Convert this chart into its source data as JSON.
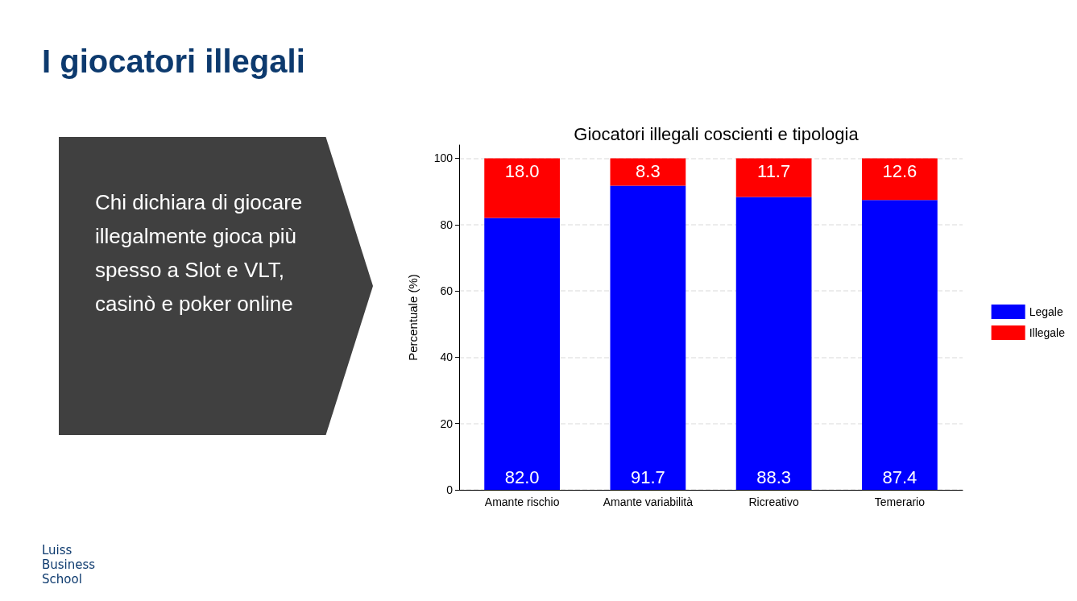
{
  "chart_data": {
    "type": "bar",
    "title": "I giocatori illegali",
    "subtitle": "Giocatori illegali coscienti e tipologia",
    "ylabel": "Percentuale (%)",
    "categories": [
      "Amante rischio",
      "Amante variabilità",
      "Ricreativo",
      "Temerario"
    ],
    "series": [
      {
        "name": "Legale",
        "color": "#0000ff",
        "values": [
          82.0,
          91.7,
          88.3,
          87.4
        ],
        "value_labels": [
          "82.0",
          "91.7",
          "88.3",
          "87.4"
        ]
      },
      {
        "name": "Illegale",
        "color": "#ff0000",
        "values": [
          18.0,
          8.3,
          11.7,
          12.6
        ],
        "value_labels": [
          "18.0",
          "8.3",
          "11.7",
          "12.6"
        ]
      }
    ],
    "stacked": true,
    "ylim": [
      0,
      104
    ],
    "yticks": [
      0,
      20,
      40,
      60,
      80,
      100
    ],
    "grid": "y",
    "legend": "right",
    "annotations": [
      "Chi dichiara di giocare illegalmente gioca più spesso a Slot e VLT, casinò e poker online",
      "Luiss Business School"
    ]
  }
}
